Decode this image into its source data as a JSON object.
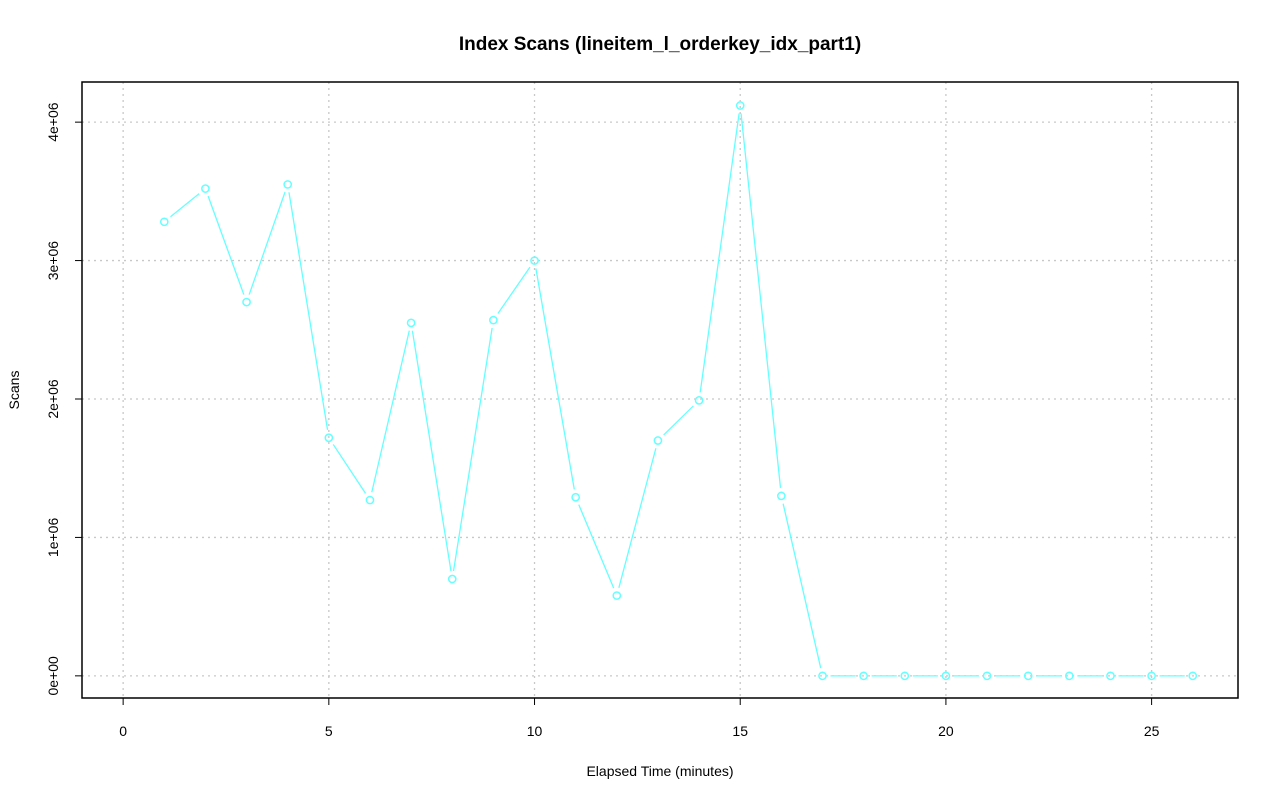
{
  "chart_data": {
    "type": "line",
    "title": "Index Scans (lineitem_l_orderkey_idx_part1)",
    "xlabel": "Elapsed Time (minutes)",
    "ylabel": "Scans",
    "xlim": [
      -1,
      27.1
    ],
    "ylim": [
      -160000,
      4290000
    ],
    "xticks": [
      0,
      5,
      10,
      15,
      20,
      25
    ],
    "xtick_labels": [
      "0",
      "5",
      "10",
      "15",
      "20",
      "25"
    ],
    "yticks": [
      0,
      1000000,
      2000000,
      3000000,
      4000000
    ],
    "ytick_labels": [
      "0e+00",
      "1e+06",
      "2e+06",
      "3e+06",
      "4e+06"
    ],
    "grid": true,
    "legend": "none",
    "color": "#66ffff",
    "series": [
      {
        "x": [
          1,
          2,
          3,
          4,
          5,
          6,
          7,
          8,
          9,
          10,
          11,
          12,
          13,
          14,
          15,
          16,
          17,
          18,
          19,
          20,
          21,
          22,
          23,
          24,
          25,
          26
        ],
        "values": [
          3280000,
          3520000,
          2700000,
          3550000,
          1720000,
          1270000,
          2550000,
          700000,
          2570000,
          3000000,
          1290000,
          580000,
          1700000,
          1990000,
          4120000,
          1300000,
          0,
          0,
          0,
          0,
          0,
          0,
          0,
          0,
          0,
          0
        ]
      }
    ]
  }
}
